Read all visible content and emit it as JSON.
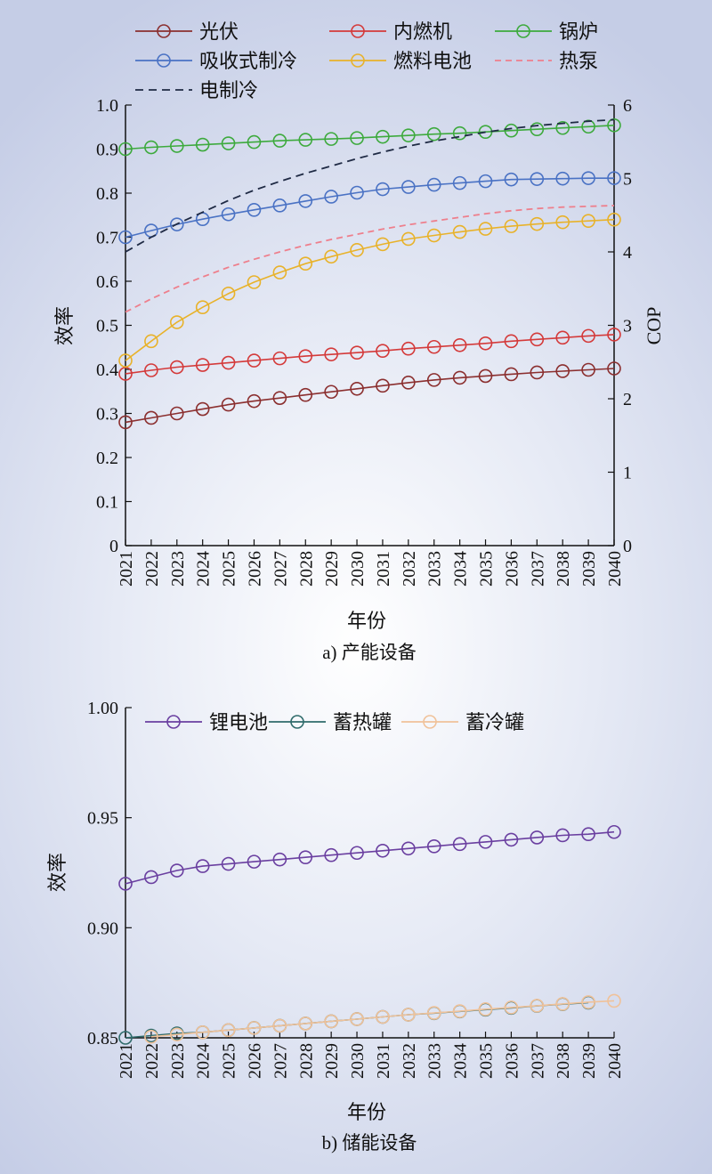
{
  "chart_data": [
    {
      "type": "line",
      "caption": "a) 产能设备",
      "xlabel": "年份",
      "ylabel": "效率",
      "y2label": "COP",
      "x": [
        "2021",
        "2022",
        "2023",
        "2024",
        "2025",
        "2026",
        "2027",
        "2028",
        "2029",
        "2030",
        "2031",
        "2032",
        "2033",
        "2034",
        "2035",
        "2036",
        "2037",
        "2038",
        "2039",
        "2040"
      ],
      "ylim": [
        0,
        1.0
      ],
      "y2lim": [
        0,
        6
      ],
      "yticks": [
        "0",
        "0.1",
        "0.2",
        "0.3",
        "0.4",
        "0.5",
        "0.6",
        "0.7",
        "0.8",
        "0.9",
        "1.0"
      ],
      "y2ticks": [
        "0",
        "1",
        "2",
        "3",
        "4",
        "5",
        "6"
      ],
      "legend_position": "top",
      "series": [
        {
          "name": "光伏",
          "color": "#8b2f2f",
          "marker": "circle",
          "axis": "left",
          "values": [
            0.28,
            0.29,
            0.3,
            0.31,
            0.32,
            0.328,
            0.335,
            0.342,
            0.349,
            0.356,
            0.363,
            0.37,
            0.376,
            0.381,
            0.385,
            0.389,
            0.393,
            0.396,
            0.399,
            0.402
          ]
        },
        {
          "name": "内燃机",
          "color": "#d43a3a",
          "marker": "circle",
          "axis": "left",
          "values": [
            0.39,
            0.398,
            0.405,
            0.41,
            0.415,
            0.42,
            0.425,
            0.43,
            0.434,
            0.438,
            0.442,
            0.447,
            0.451,
            0.455,
            0.459,
            0.464,
            0.468,
            0.472,
            0.476,
            0.479
          ]
        },
        {
          "name": "锅炉",
          "color": "#3daa3d",
          "marker": "circle",
          "axis": "left",
          "values": [
            0.9,
            0.904,
            0.907,
            0.91,
            0.913,
            0.916,
            0.919,
            0.921,
            0.923,
            0.925,
            0.928,
            0.931,
            0.934,
            0.936,
            0.939,
            0.942,
            0.945,
            0.948,
            0.951,
            0.954
          ]
        },
        {
          "name": "吸收式制冷",
          "color": "#4a72c4",
          "marker": "circle",
          "axis": "left",
          "values": [
            0.7,
            0.715,
            0.729,
            0.741,
            0.752,
            0.762,
            0.772,
            0.782,
            0.792,
            0.801,
            0.809,
            0.814,
            0.819,
            0.823,
            0.827,
            0.831,
            0.832,
            0.833,
            0.834,
            0.834
          ]
        },
        {
          "name": "燃料电池",
          "color": "#e8b22a",
          "marker": "circle",
          "axis": "left",
          "values": [
            0.42,
            0.464,
            0.507,
            0.541,
            0.572,
            0.598,
            0.62,
            0.64,
            0.656,
            0.671,
            0.684,
            0.696,
            0.704,
            0.712,
            0.719,
            0.725,
            0.73,
            0.734,
            0.737,
            0.74
          ]
        },
        {
          "name": "热泵",
          "color": "#ee7f8c",
          "dash": "7,5",
          "axis": "right",
          "values": [
            3.18,
            3.36,
            3.52,
            3.66,
            3.79,
            3.9,
            4.0,
            4.09,
            4.17,
            4.24,
            4.31,
            4.37,
            4.42,
            4.47,
            4.52,
            4.56,
            4.59,
            4.61,
            4.62,
            4.63
          ]
        },
        {
          "name": "电制冷",
          "color": "#1f2a44",
          "dash": "9,6",
          "axis": "right",
          "values": [
            4.0,
            4.2,
            4.38,
            4.54,
            4.7,
            4.84,
            4.96,
            5.07,
            5.17,
            5.27,
            5.36,
            5.44,
            5.51,
            5.57,
            5.63,
            5.68,
            5.72,
            5.75,
            5.78,
            5.8
          ]
        }
      ]
    },
    {
      "type": "line",
      "caption": "b) 储能设备",
      "xlabel": "年份",
      "ylabel": "效率",
      "x": [
        "2021",
        "2022",
        "2023",
        "2024",
        "2025",
        "2026",
        "2027",
        "2028",
        "2029",
        "2030",
        "2031",
        "2032",
        "2033",
        "2034",
        "2035",
        "2036",
        "2037",
        "2038",
        "2039",
        "2040"
      ],
      "ylim": [
        0.85,
        1.0
      ],
      "yticks": [
        "0.85",
        "0.90",
        "0.95",
        "1.00"
      ],
      "legend_position": "top",
      "series": [
        {
          "name": "锂电池",
          "color": "#6a3fa0",
          "marker": "circle",
          "values": [
            0.92,
            0.923,
            0.926,
            0.928,
            0.929,
            0.93,
            0.931,
            0.932,
            0.933,
            0.934,
            0.935,
            0.936,
            0.937,
            0.938,
            0.939,
            0.94,
            0.941,
            0.942,
            0.9425,
            0.9435
          ]
        },
        {
          "name": "蓄热罐",
          "color": "#2f6b6b",
          "marker": "circle",
          "values": [
            0.85,
            0.851,
            0.852,
            0.8525,
            0.8535,
            0.8545,
            0.8555,
            0.8565,
            0.8575,
            0.8585,
            0.8595,
            0.8605,
            0.8612,
            0.862,
            0.8628,
            0.8636,
            0.8645,
            0.8653,
            0.866,
            null
          ]
        },
        {
          "name": "蓄冷罐",
          "color": "#f0c29a",
          "marker": "circle",
          "values": [
            null,
            0.8505,
            0.8515,
            0.8525,
            0.8535,
            0.8545,
            0.8555,
            0.8565,
            0.8575,
            0.8585,
            0.8595,
            0.8605,
            0.8613,
            0.8621,
            0.863,
            0.8638,
            0.8646,
            0.8654,
            0.8662,
            0.8668
          ]
        }
      ]
    }
  ]
}
